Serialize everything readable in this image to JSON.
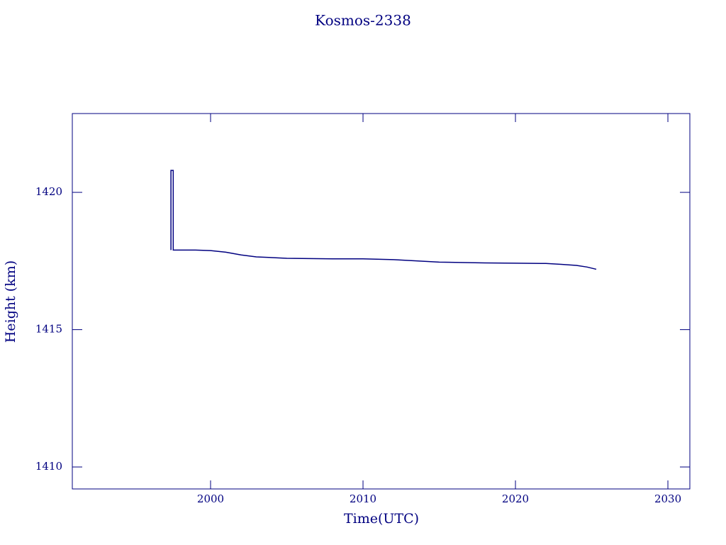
{
  "chart_data": {
    "type": "line",
    "title": "Kosmos-2338",
    "x_label": "Time(UTC)",
    "y_label": "Height (km)",
    "x": [
      1997.4,
      1997.4,
      1997.55,
      1997.55,
      1998,
      1999,
      2000,
      2001,
      2002,
      2003,
      2005,
      2008,
      2010,
      2012,
      2015,
      2018,
      2020,
      2022,
      2023,
      2024,
      2024.7,
      2025.3
    ],
    "series": [
      {
        "name": "Height",
        "color": "#000080",
        "values": [
          1417.9,
          1420.8,
          1420.8,
          1417.9,
          1417.9,
          1417.9,
          1417.88,
          1417.82,
          1417.72,
          1417.65,
          1417.6,
          1417.58,
          1417.58,
          1417.55,
          1417.46,
          1417.43,
          1417.42,
          1417.41,
          1417.38,
          1417.34,
          1417.28,
          1417.2
        ]
      }
    ],
    "xlim": [
      1990.93,
      2031.44
    ],
    "xticks": [
      2000,
      2010,
      2020,
      2030
    ],
    "ylim": [
      1409.2,
      1422.87
    ],
    "yticks": [
      1410,
      1415,
      1420
    ]
  }
}
